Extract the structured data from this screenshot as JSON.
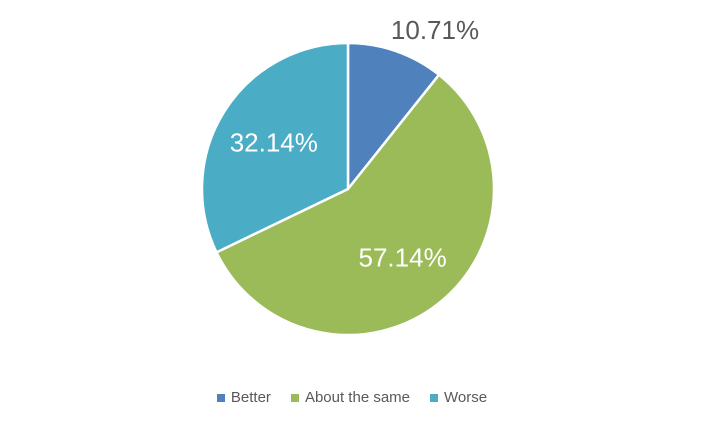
{
  "chart_data": {
    "type": "pie",
    "categories": [
      "Better",
      "About the same",
      "Worse"
    ],
    "values": [
      10.71,
      57.14,
      32.14
    ],
    "labels": [
      "10.71%",
      "57.14%",
      "32.14%"
    ],
    "colors": [
      "#4f81bd",
      "#9bbb59",
      "#4bacc6"
    ],
    "label_colors": [
      "#595959",
      "#ffffff",
      "#ffffff"
    ],
    "start_angle": "12 o'clock",
    "direction": "clockwise",
    "legend_position": "bottom"
  }
}
